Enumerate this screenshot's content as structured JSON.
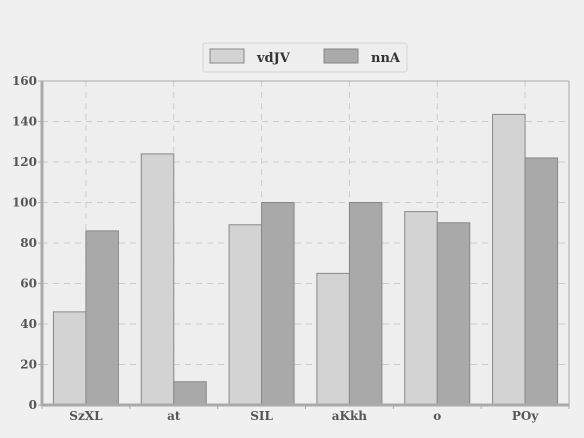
{
  "chart_data": {
    "type": "bar",
    "categories": [
      "SzXL",
      "at",
      "SIL",
      "aKkh",
      "o",
      "POy"
    ],
    "series": [
      {
        "name": "vdJV",
        "values": [
          46,
          124,
          89,
          65,
          95.5,
          143.5
        ],
        "color": "#d3d3d3"
      },
      {
        "name": "nnA",
        "values": [
          86,
          11.5,
          100,
          100,
          90,
          122
        ],
        "color": "#a9a9a9"
      }
    ],
    "ylim": [
      0,
      160
    ],
    "y_ticks": [
      "0",
      "20",
      "40",
      "60",
      "80",
      "100",
      "120",
      "140",
      "160"
    ],
    "grid": true,
    "legend_position": "top-center",
    "colors": {
      "background": "#f0f0f0",
      "plot_background": "#eeeeee",
      "axis": "#aaaaaa",
      "grid": "#cccccc",
      "bar_stroke": "#888888"
    }
  }
}
